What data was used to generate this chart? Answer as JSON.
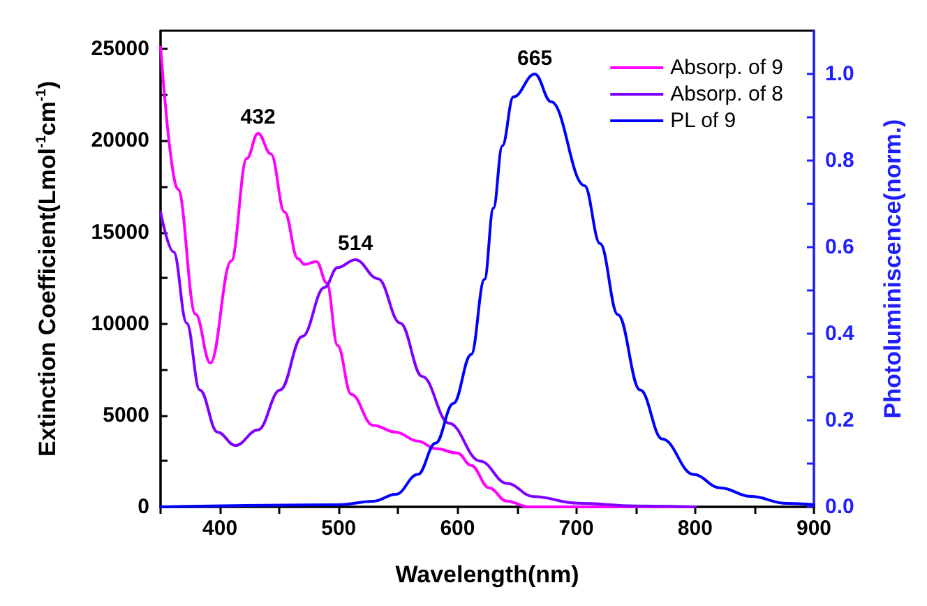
{
  "chart_data": {
    "type": "line",
    "xlabel": "Wavelength(nm)",
    "ylabel": "Extinction Coefficient(Lmol$^{-1}$cm$^{-1}$)",
    "y2label": "Photoluminiscence(norm.)",
    "xlim": [
      350,
      900
    ],
    "xticks": [
      {
        "value": 350,
        "label": null
      },
      400,
      {
        "value": 450,
        "label": null
      },
      500,
      {
        "value": 550,
        "label": null
      },
      600,
      {
        "value": 650,
        "label": null
      },
      700,
      {
        "value": 750,
        "label": null
      },
      800,
      {
        "value": 850,
        "label": null
      },
      900
    ],
    "ylim": [
      0,
      26000
    ],
    "yticks": [
      0,
      {
        "value": 2500,
        "label": null
      },
      5000,
      {
        "value": 7500,
        "label": null
      },
      10000,
      {
        "value": 12500,
        "label": null
      },
      15000,
      {
        "value": 17500,
        "label": null
      },
      20000,
      {
        "value": 22500,
        "label": null
      },
      25000
    ],
    "y2lim": [
      0,
      1.1
    ],
    "y2ticks": [
      {
        "value": 0,
        "label": "0.0"
      },
      {
        "value": 0.1,
        "label": null
      },
      0.2,
      {
        "value": 0.3,
        "label": null
      },
      0.4,
      {
        "value": 0.5,
        "label": null
      },
      0.6,
      {
        "value": 0.7,
        "label": null
      },
      0.8,
      {
        "value": 0.9,
        "label": null
      },
      {
        "value": 1,
        "label": "1.0"
      }
    ],
    "grid": false,
    "legend": "top right",
    "marker": "none",
    "line_style": "solid",
    "annotations": [
      {
        "text": "432",
        "x": 432,
        "y": 20400
      },
      {
        "text": "514",
        "x": 514,
        "y": 13500
      },
      {
        "text": "665",
        "x": 665,
        "y": 23600
      }
    ],
    "series": [
      {
        "name": "Absorp. of 9",
        "color": "#ff00ff",
        "x": [
          350,
          364.6,
          379.5,
          391.9,
          409.5,
          422.6,
          432,
          443,
          454.4,
          465.6,
          471.2,
          481.3,
          490,
          499,
          510.5,
          529,
          548,
          566.6,
          581.5,
          600,
          611.5,
          626.5,
          641.5,
          660,
          700,
          800
        ],
        "values": [
          25100,
          17350,
          10520,
          7850,
          13430,
          19020,
          20400,
          19260,
          16100,
          13560,
          13240,
          13390,
          12220,
          8820,
          6150,
          4450,
          4080,
          3590,
          3180,
          2940,
          2260,
          1040,
          310,
          0,
          0,
          0
        ]
      },
      {
        "name": "Absorp. of 8",
        "color": "#8000ff",
        "x": [
          350,
          361,
          372,
          383,
          398,
          413,
          432,
          450.7,
          469.3,
          488,
          499,
          514,
          533,
          551.7,
          570.3,
          592.8,
          619,
          641.5,
          664,
          701,
          750,
          800
        ],
        "values": [
          16100,
          13920,
          10040,
          6390,
          4080,
          3350,
          4200,
          6390,
          9300,
          11980,
          13070,
          13500,
          12460,
          10040,
          7120,
          4570,
          2500,
          1290,
          560,
          200,
          50,
          0
        ]
      },
      {
        "name": "PL of 9",
        "color": "#0000ff",
        "axis": "y2",
        "x": [
          350,
          500,
          529,
          548,
          566.6,
          581.5,
          596.5,
          611.5,
          622.7,
          630.2,
          637.7,
          647,
          665,
          678.8,
          706.9,
          720,
          735,
          753.7,
          772.3,
          798.6,
          821,
          847,
          877,
          900
        ],
        "values": [
          0,
          0.005,
          0.013,
          0.029,
          0.075,
          0.147,
          0.239,
          0.352,
          0.526,
          0.69,
          0.834,
          0.947,
          1.0,
          0.936,
          0.742,
          0.608,
          0.444,
          0.27,
          0.157,
          0.075,
          0.044,
          0.024,
          0.008,
          0.005
        ]
      }
    ]
  }
}
